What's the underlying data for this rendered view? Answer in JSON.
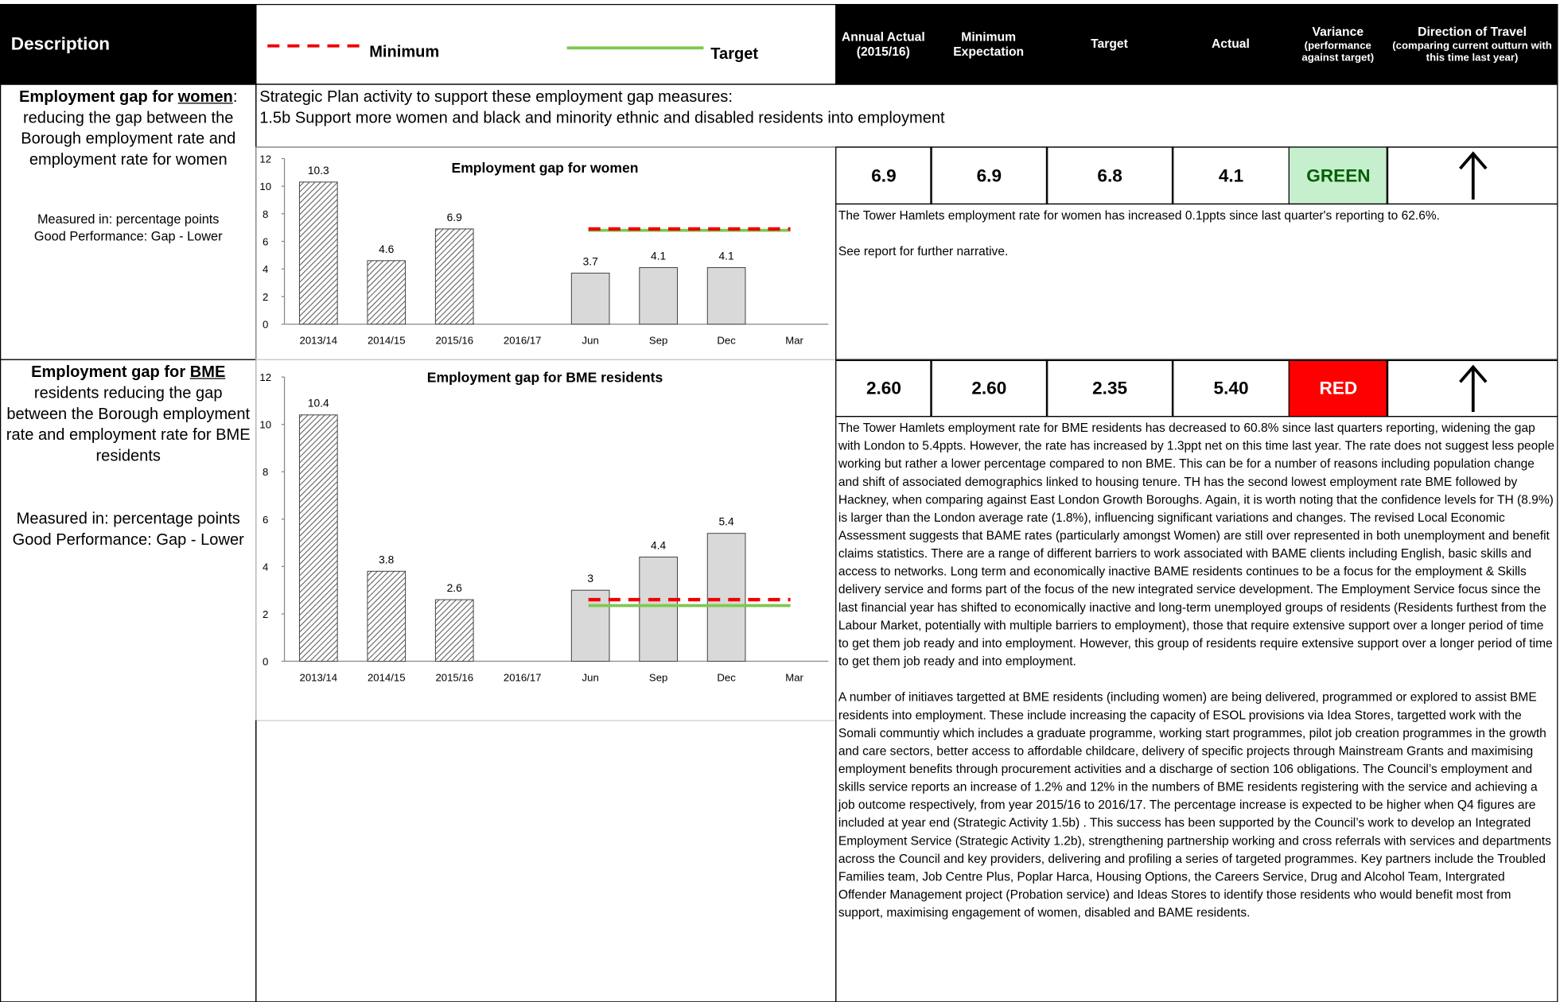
{
  "header": {
    "description": "Description",
    "legend": {
      "minimum": "Minimum",
      "target": "Target"
    },
    "columns": [
      {
        "title": "Annual Actual (2015/16)"
      },
      {
        "title": "Minimum Expectation"
      },
      {
        "title": "Target"
      },
      {
        "title": "Actual"
      },
      {
        "title": "Variance",
        "note": "(performance against target)"
      },
      {
        "title": "Direction of Travel",
        "note": "(comparing current outturn with this time last year)"
      }
    ]
  },
  "strategic_plan": [
    "Strategic Plan activity to support these employment gap measures:",
    "1.5b Support more women and black and minority ethnic and disabled residents into employment"
  ],
  "rows": [
    {
      "description": {
        "bold": "Employment gap for",
        "underline": "women",
        "rest": ": reducing the gap between the Borough employment rate and employment rate for women",
        "measured": "Measured in: percentage points",
        "good": "Good Performance: Gap - Lower"
      },
      "annual": "6.9",
      "minimum": "6.9",
      "target": "6.8",
      "actual": "4.1",
      "variance": "GREEN",
      "narrative": [
        "The Tower Hamlets employment rate for women has increased 0.1ppts since last quarter's reporting to 62.6%.",
        "See report for further narrative."
      ],
      "chart": {
        "type": "bar",
        "title": "Employment gap for women",
        "categories": [
          "2013/14",
          "2014/15",
          "2015/16",
          "2016/17",
          "Jun",
          "Sep",
          "Dec",
          "Mar"
        ],
        "values": [
          10.3,
          4.6,
          6.9,
          null,
          3.7,
          4.1,
          4.1,
          null
        ],
        "ylim": [
          0,
          12
        ],
        "yticks": [
          0,
          2,
          4,
          6,
          8,
          10,
          12
        ]
      }
    },
    {
      "description": {
        "bold": "Employment gap for",
        "underline": "BME",
        "rest": " residents reducing the gap between the Borough employment rate and employment rate for BME residents",
        "measured": "Measured in: percentage points",
        "good": "Good Performance: Gap - Lower"
      },
      "annual": "2.60",
      "minimum": "2.60",
      "target": "2.35",
      "actual": "5.40",
      "variance": "RED",
      "narrative": [
        "The Tower Hamlets employment rate for BME residents has decreased to 60.8% since last quarters reporting, widening the gap with London to 5.4ppts. However, the rate has increased by 1.3ppt net on this time last year. The rate does not suggest less people working but rather a lower percentage compared to non BME. This can be for a number of reasons including population change and shift of associated demographics linked to housing tenure. TH has the second lowest employment rate BME followed by Hackney, when comparing against East London Growth Boroughs.  Again, it is worth noting that the confidence levels for TH (8.9%) is larger than the London average rate (1.8%), influencing significant variations and changes.  The revised Local Economic Assessment suggests that BAME rates (particularly amongst Women) are still over represented in both unemployment and benefit claims statistics. There are a range of different barriers to work associated with BAME clients including English, basic skills and access to networks. Long term and economically inactive BAME residents continues to be a focus for the employment & Skills delivery service and forms part of the focus of the new integrated service development. The Employment Service focus since the last financial year has shifted to economically inactive and long-term unemployed groups of residents (Residents furthest from the Labour Market, potentially with multiple barriers to employment), those that require extensive support over a longer period of time to get them job ready and into employment. However, this group of residents require extensive support over a longer period of time to get them job ready and into employment.",
        "A number of initiaves targetted at BME residents (including women) are being delivered, programmed or explored to assist BME residents into employment.  These include increasing the capacity of ESOL provisions via Idea Stores, targetted work with the Somali communtiy which includes a graduate programme, working start programmes, pilot job creation programmes in the growth and care sectors, better access to affordable childcare, delivery of specific projects through Mainstream Grants and maximising employment benefits through procurement activities and a discharge of section 106 obligations.  The Council’s employment and skills service reports an increase of 1.2% and 12% in the numbers of BME residents registering with the service and achieving a job outcome respectively, from year 2015/16 to 2016/17. The percentage increase is expected to be higher when Q4 figures are included at year end (Strategic Activity 1.5b) .  This success has been supported by the Council’s work to develop an Integrated Employment Service (Strategic Activity 1.2b), strengthening partnership working and cross referrals with services and departments across the Council and key providers, delivering and profiling a series of targeted programmes. Key partners include the Troubled Families team, Job Centre Plus, Poplar Harca, Housing Options, the Careers Service, Drug and Alcohol Team, Intergrated Offender Management project (Probation service) and Ideas Stores to identify those residents who would benefit most from support, maximising engagement of women, disabled and BAME residents."
      ],
      "chart": {
        "type": "bar",
        "title": "Employment gap for BME residents",
        "categories": [
          "2013/14",
          "2014/15",
          "2015/16",
          "2016/17",
          "Jun",
          "Sep",
          "Dec",
          "Mar"
        ],
        "values": [
          10.4,
          3.8,
          2.6,
          null,
          3,
          4.4,
          5.4,
          null
        ],
        "ylim": [
          0,
          12
        ],
        "yticks": [
          0,
          2,
          4,
          6,
          8,
          10,
          12
        ]
      }
    }
  ]
}
